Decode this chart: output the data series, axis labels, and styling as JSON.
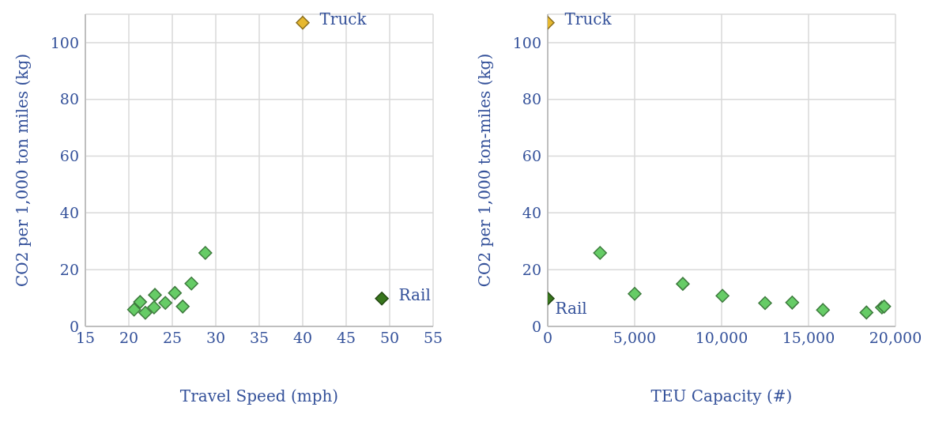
{
  "chart_data": [
    {
      "type": "scatter",
      "xlabel": "Travel Speed (mph)",
      "ylabel": "CO2 per 1,000 ton miles (kg)",
      "xlim": [
        15,
        55
      ],
      "xticks": [
        15,
        20,
        25,
        30,
        35,
        40,
        45,
        50,
        55
      ],
      "ylim": [
        0,
        110
      ],
      "yticks": [
        0,
        20,
        40,
        60,
        80,
        100
      ],
      "grid": true,
      "marker": "diamond",
      "series": [
        {
          "color": "#66cc66",
          "x": [
            28.8,
            27.2,
            25.3,
            23.0,
            21.3,
            24.2,
            22.9,
            26.2,
            20.6,
            21.9
          ],
          "values": [
            25.9,
            15.1,
            11.8,
            11.1,
            8.6,
            8.3,
            6.7,
            7.0,
            5.9,
            4.8
          ]
        },
        {
          "name": "Rail",
          "color": "#38761d",
          "x": [
            49.1
          ],
          "values": [
            9.8
          ]
        },
        {
          "name": "Truck",
          "color": "#e6b830",
          "x": [
            40
          ],
          "values": [
            107
          ]
        }
      ]
    },
    {
      "type": "scatter",
      "xlabel": "TEU Capacity (#)",
      "ylabel": "CO2 per 1,000 ton-miles (kg)",
      "xlim": [
        0,
        20000
      ],
      "xticks": [
        0,
        {
          "value": 5000,
          "label": "5,000"
        },
        {
          "value": 10000,
          "label": "10,000"
        },
        {
          "value": 15000,
          "label": "15,000"
        },
        {
          "value": 20000,
          "label": "20,000"
        }
      ],
      "ylim": [
        0,
        110
      ],
      "yticks": [
        0,
        20,
        40,
        60,
        80,
        100
      ],
      "grid": true,
      "marker": "diamond",
      "series": [
        {
          "color": "#66cc66",
          "x": [
            3010,
            5000,
            7770,
            10050,
            12500,
            14060,
            15830,
            18330,
            19220,
            19350
          ],
          "values": [
            25.9,
            11.5,
            15.0,
            10.8,
            8.2,
            8.4,
            5.8,
            4.9,
            6.7,
            7.0
          ]
        },
        {
          "name": "Rail",
          "color": "#38761d",
          "x": [
            0
          ],
          "values": [
            9.8
          ]
        },
        {
          "name": "Truck",
          "color": "#e6b830",
          "x": [
            0
          ],
          "values": [
            107
          ]
        }
      ]
    }
  ]
}
